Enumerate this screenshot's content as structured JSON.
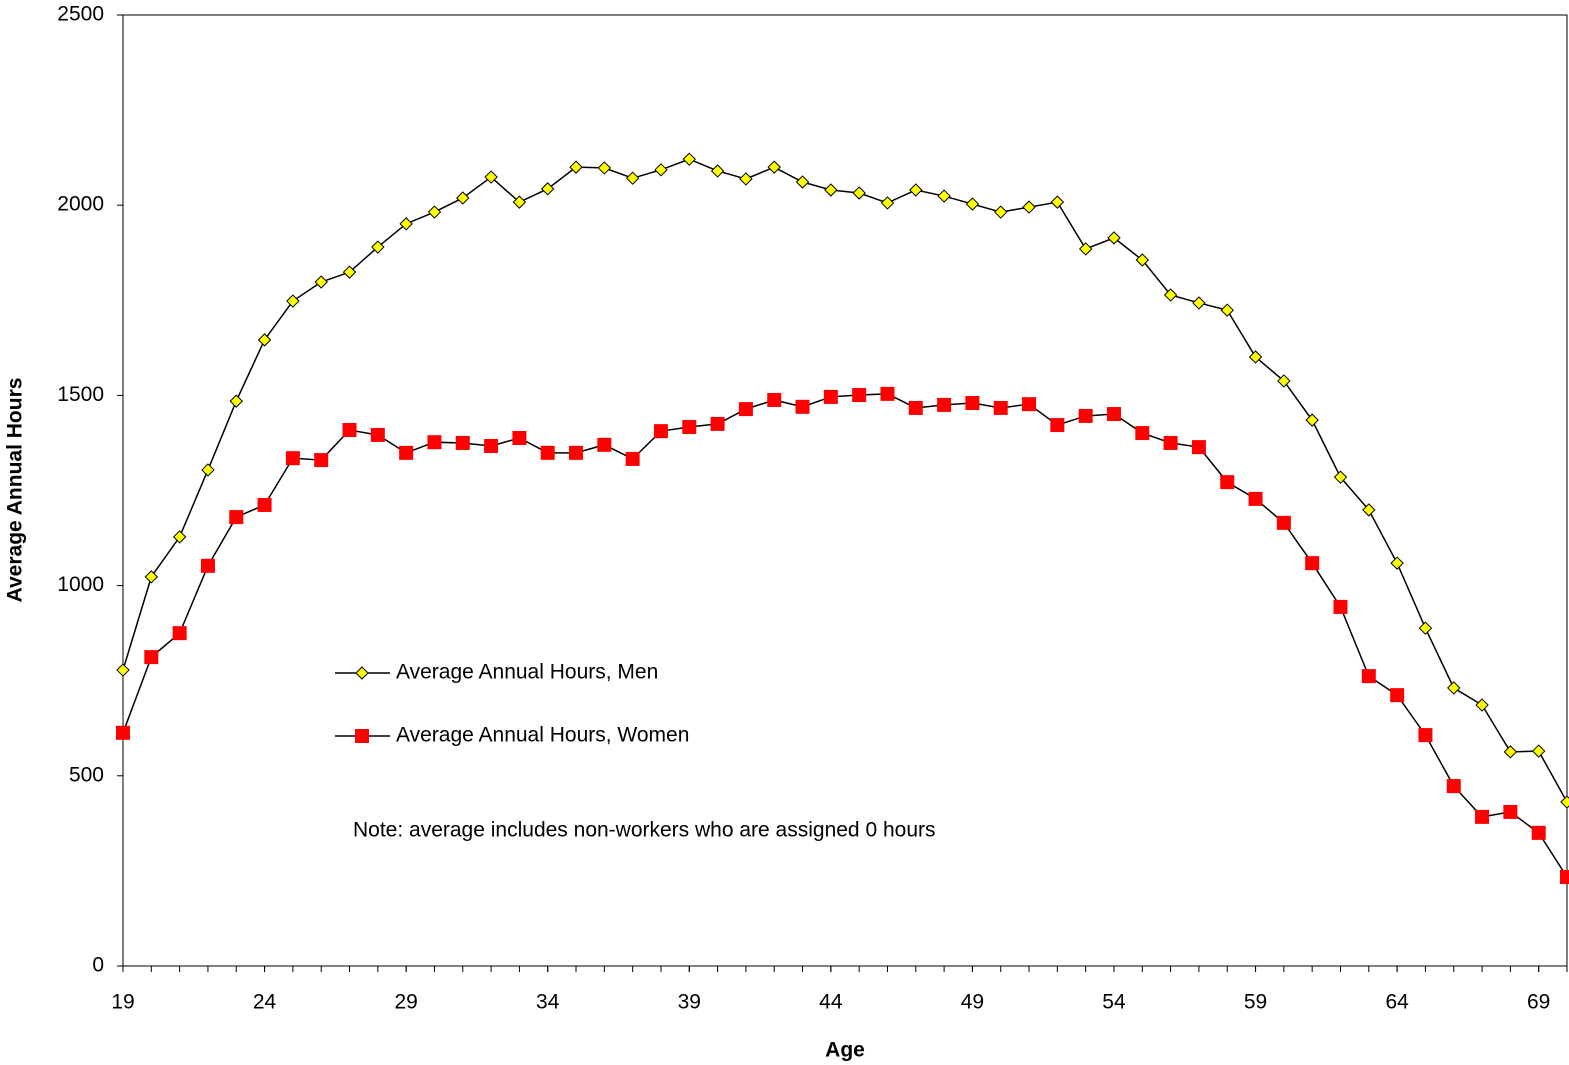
{
  "chart_data": {
    "type": "line",
    "x_label": "Age",
    "y_label": "Average Annual Hours",
    "note": "Note: average includes non-workers who are assigned 0 hours",
    "x": [
      19,
      20,
      21,
      22,
      23,
      24,
      25,
      26,
      27,
      28,
      29,
      30,
      31,
      32,
      33,
      34,
      35,
      36,
      37,
      38,
      39,
      40,
      41,
      42,
      43,
      44,
      45,
      46,
      47,
      48,
      49,
      50,
      51,
      52,
      53,
      54,
      55,
      56,
      57,
      58,
      59,
      60,
      61,
      62,
      63,
      64,
      65,
      66,
      67,
      68,
      69,
      70
    ],
    "xlim": [
      19,
      70
    ],
    "xticks": [
      19,
      24,
      29,
      34,
      39,
      44,
      49,
      54,
      59,
      64,
      69
    ],
    "ylim": [
      0,
      2500
    ],
    "yticks": [
      0,
      500,
      1000,
      1500,
      2000,
      2500
    ],
    "grid": false,
    "series": [
      {
        "name": "Average Annual Hours, Men",
        "color": "#ffff00",
        "marker": "diamond",
        "values": [
          778,
          1023,
          1128,
          1304,
          1485,
          1646,
          1748,
          1798,
          1824,
          1890,
          1951,
          1982,
          2019,
          2074,
          2008,
          2043,
          2100,
          2098,
          2071,
          2093,
          2121,
          2090,
          2069,
          2100,
          2061,
          2040,
          2032,
          2006,
          2040,
          2024,
          2003,
          1982,
          1995,
          2008,
          1885,
          1914,
          1856,
          1764,
          1743,
          1724,
          1601,
          1538,
          1435,
          1285,
          1199,
          1059,
          888,
          731,
          686,
          563,
          565,
          431
        ]
      },
      {
        "name": "Average Annual Hours, Women",
        "color": "#ff0000",
        "marker": "square",
        "values": [
          613,
          812,
          875,
          1052,
          1180,
          1212,
          1335,
          1330,
          1409,
          1396,
          1349,
          1377,
          1375,
          1367,
          1388,
          1349,
          1349,
          1370,
          1333,
          1406,
          1417,
          1425,
          1464,
          1488,
          1470,
          1496,
          1501,
          1504,
          1467,
          1475,
          1480,
          1467,
          1477,
          1422,
          1446,
          1451,
          1401,
          1375,
          1364,
          1272,
          1228,
          1165,
          1059,
          944,
          762,
          712,
          607,
          473,
          392,
          405,
          350,
          234
        ]
      }
    ]
  }
}
